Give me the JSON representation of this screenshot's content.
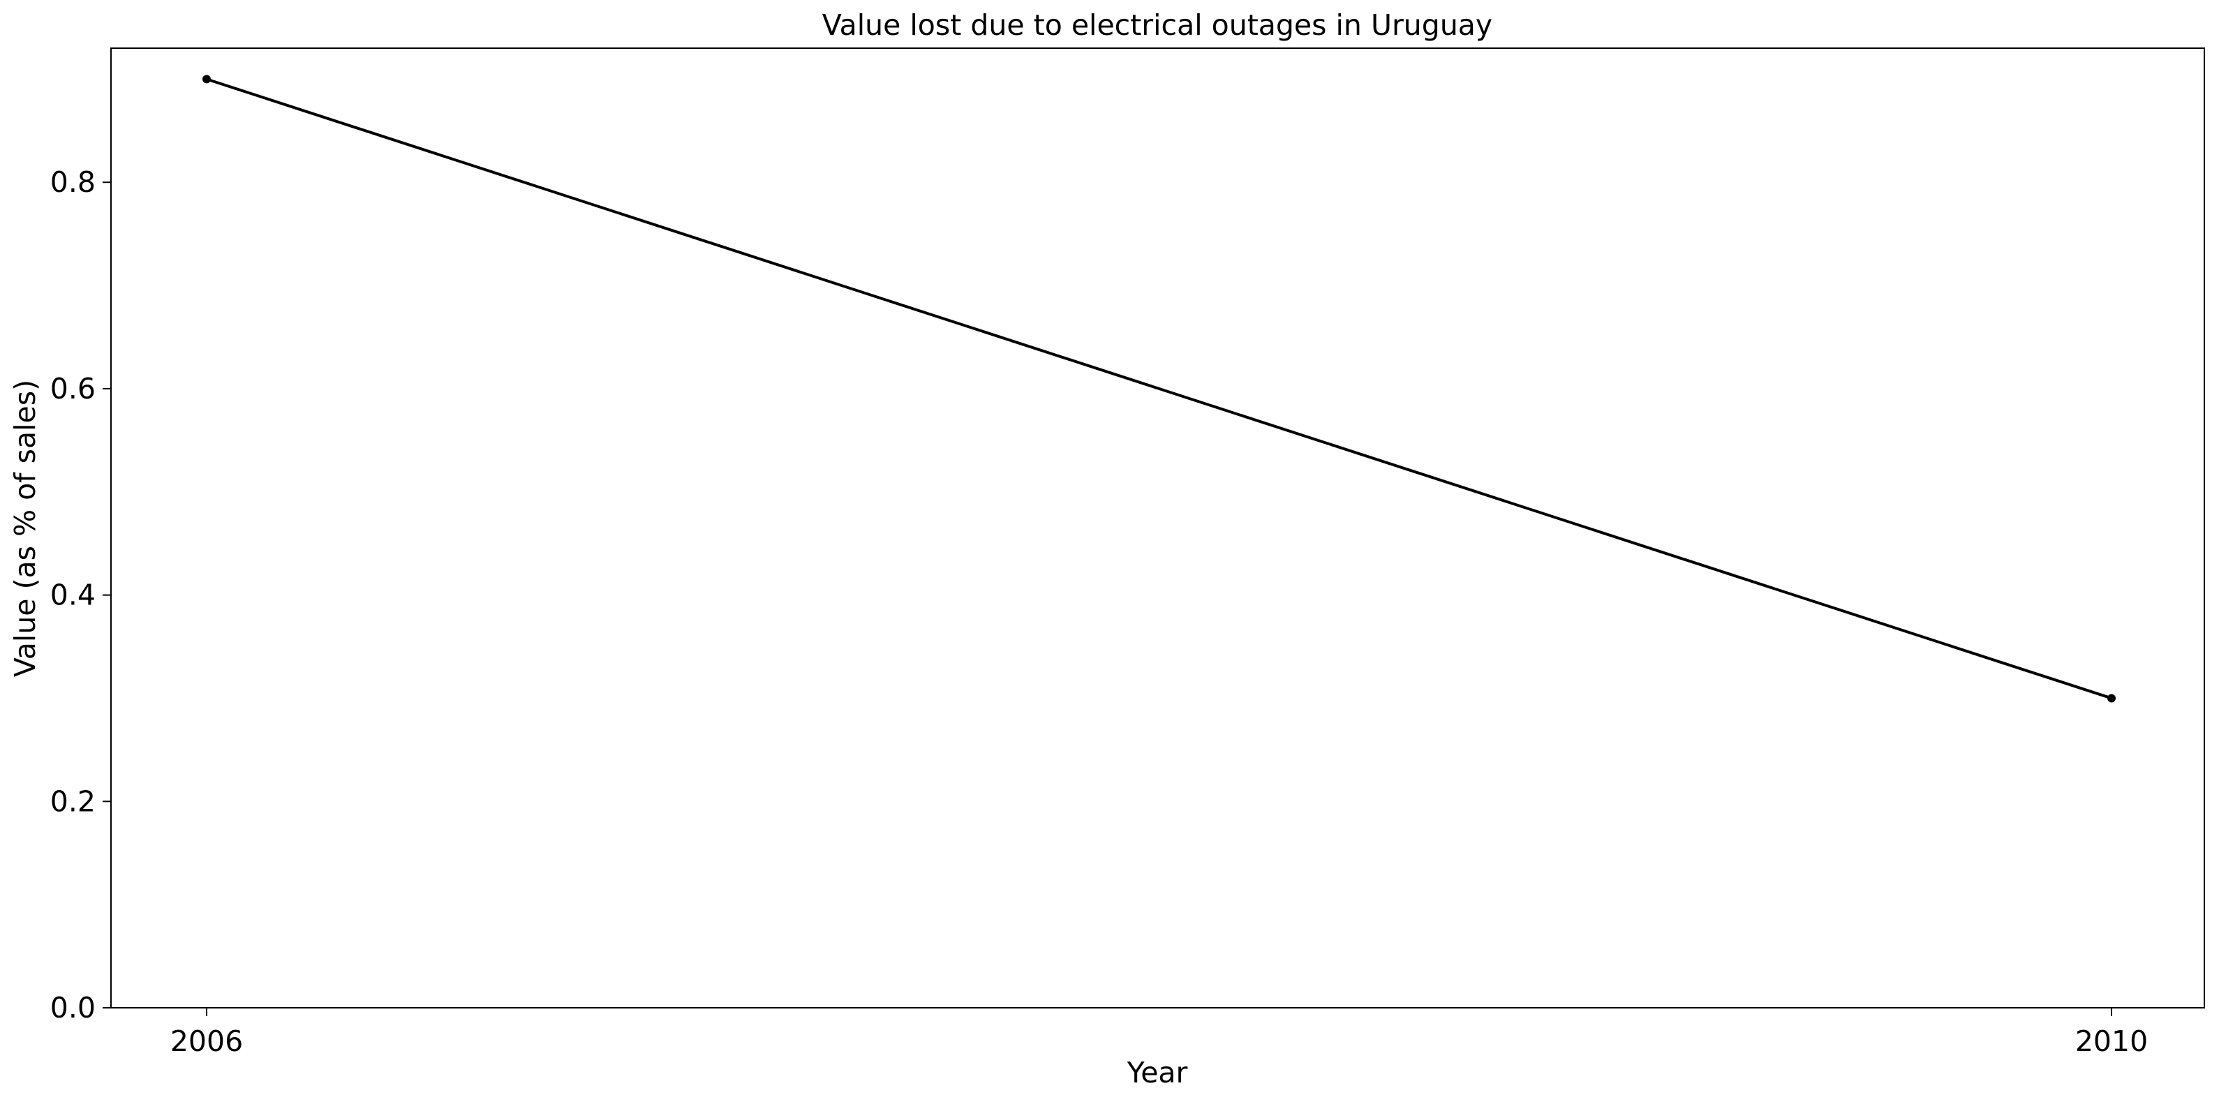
{
  "chart_data": {
    "type": "line",
    "title": "Value lost due to electrical outages in Uruguay",
    "xlabel": "Year",
    "ylabel": "Value (as % of sales)",
    "x": [
      "2006",
      "2010"
    ],
    "series": [
      {
        "values": [
          0.9,
          0.3
        ]
      }
    ],
    "ylim": [
      0,
      0.93
    ],
    "yticks": [
      "0.0",
      "0.2",
      "0.4",
      "0.6",
      "0.8"
    ],
    "xticks": [
      "2006",
      "2010"
    ],
    "grid": false,
    "legend": "none",
    "colors": {
      "line": "#000000",
      "frame": "#000000",
      "background": "#ffffff"
    }
  }
}
